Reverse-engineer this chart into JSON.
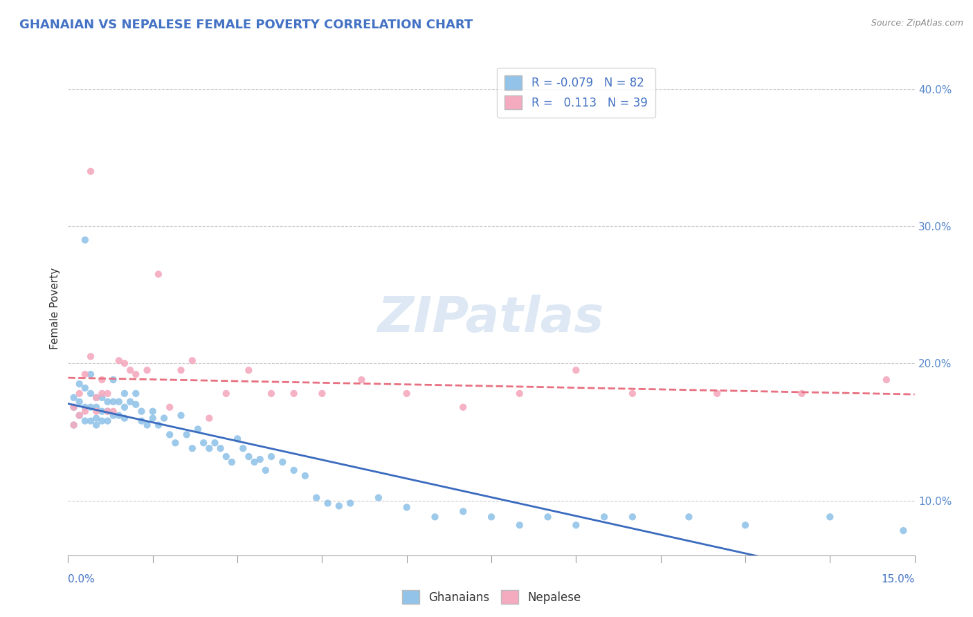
{
  "title": "GHANAIAN VS NEPALESE FEMALE POVERTY CORRELATION CHART",
  "source": "Source: ZipAtlas.com",
  "ylabel": "Female Poverty",
  "xmin": 0.0,
  "xmax": 0.15,
  "ymin": 0.06,
  "ymax": 0.42,
  "yticks": [
    0.1,
    0.2,
    0.3,
    0.4
  ],
  "ytick_labels": [
    "10.0%",
    "20.0%",
    "30.0%",
    "40.0%"
  ],
  "ghanaian_color": "#93C3E8",
  "nepalese_color": "#F4AABF",
  "ghanaian_line_color": "#3A6BBF",
  "nepalese_line_color": "#E87080",
  "legend_R1": "-0.079",
  "legend_N1": "82",
  "legend_R2": "0.113",
  "legend_N2": "39",
  "ghanaian_x": [
    0.001,
    0.001,
    0.001,
    0.002,
    0.002,
    0.002,
    0.003,
    0.003,
    0.003,
    0.003,
    0.004,
    0.004,
    0.004,
    0.004,
    0.005,
    0.005,
    0.005,
    0.005,
    0.006,
    0.006,
    0.006,
    0.007,
    0.007,
    0.007,
    0.008,
    0.008,
    0.008,
    0.009,
    0.009,
    0.01,
    0.01,
    0.01,
    0.011,
    0.012,
    0.012,
    0.013,
    0.013,
    0.014,
    0.015,
    0.015,
    0.016,
    0.017,
    0.018,
    0.019,
    0.02,
    0.021,
    0.022,
    0.023,
    0.024,
    0.025,
    0.026,
    0.027,
    0.028,
    0.029,
    0.03,
    0.031,
    0.032,
    0.033,
    0.034,
    0.035,
    0.036,
    0.038,
    0.04,
    0.042,
    0.044,
    0.046,
    0.048,
    0.05,
    0.055,
    0.06,
    0.065,
    0.07,
    0.075,
    0.08,
    0.085,
    0.09,
    0.095,
    0.1,
    0.11,
    0.12,
    0.135,
    0.148
  ],
  "ghanaian_y": [
    0.175,
    0.168,
    0.155,
    0.185,
    0.172,
    0.162,
    0.29,
    0.182,
    0.168,
    0.158,
    0.192,
    0.178,
    0.168,
    0.158,
    0.175,
    0.168,
    0.16,
    0.155,
    0.175,
    0.165,
    0.158,
    0.172,
    0.165,
    0.158,
    0.188,
    0.172,
    0.162,
    0.172,
    0.162,
    0.178,
    0.168,
    0.16,
    0.172,
    0.178,
    0.17,
    0.165,
    0.158,
    0.155,
    0.165,
    0.16,
    0.155,
    0.16,
    0.148,
    0.142,
    0.162,
    0.148,
    0.138,
    0.152,
    0.142,
    0.138,
    0.142,
    0.138,
    0.132,
    0.128,
    0.145,
    0.138,
    0.132,
    0.128,
    0.13,
    0.122,
    0.132,
    0.128,
    0.122,
    0.118,
    0.102,
    0.098,
    0.096,
    0.098,
    0.102,
    0.095,
    0.088,
    0.092,
    0.088,
    0.082,
    0.088,
    0.082,
    0.088,
    0.088,
    0.088,
    0.082,
    0.088,
    0.078
  ],
  "nepalese_x": [
    0.001,
    0.001,
    0.002,
    0.002,
    0.003,
    0.003,
    0.004,
    0.004,
    0.005,
    0.005,
    0.006,
    0.006,
    0.007,
    0.007,
    0.008,
    0.009,
    0.01,
    0.011,
    0.012,
    0.014,
    0.016,
    0.018,
    0.02,
    0.022,
    0.025,
    0.028,
    0.032,
    0.036,
    0.04,
    0.045,
    0.052,
    0.06,
    0.07,
    0.08,
    0.09,
    0.1,
    0.115,
    0.13,
    0.145
  ],
  "nepalese_y": [
    0.168,
    0.155,
    0.178,
    0.162,
    0.192,
    0.165,
    0.205,
    0.34,
    0.165,
    0.175,
    0.178,
    0.188,
    0.178,
    0.165,
    0.165,
    0.202,
    0.2,
    0.195,
    0.192,
    0.195,
    0.265,
    0.168,
    0.195,
    0.202,
    0.16,
    0.178,
    0.195,
    0.178,
    0.178,
    0.178,
    0.188,
    0.178,
    0.168,
    0.178,
    0.195,
    0.178,
    0.178,
    0.178,
    0.188
  ]
}
